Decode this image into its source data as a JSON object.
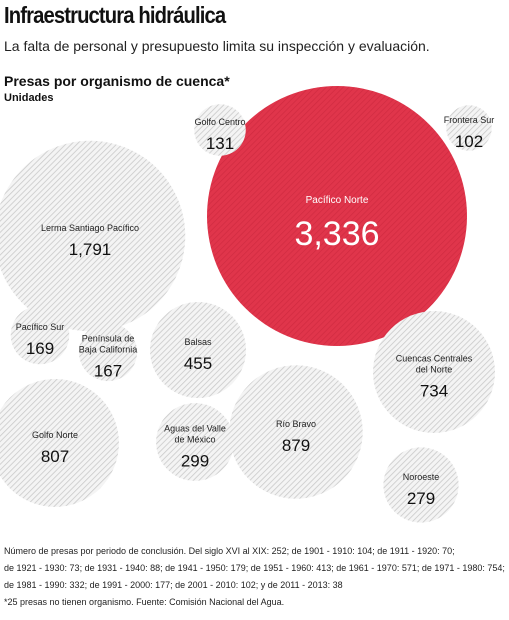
{
  "header": {
    "title": "Infraestructura hidráulica",
    "subtitle": "La falta de personal y presupuesto limita su inspección y evaluación."
  },
  "chart_data": {
    "type": "bubble",
    "title": "Presas por organismo de cuenca*",
    "units": "Unidades",
    "series": [
      {
        "name": "Pacífico Norte",
        "value": 3336,
        "display": "3,336",
        "highlight": true
      },
      {
        "name": "Lerma Santiago Pacífico",
        "value": 1791,
        "display": "1,791"
      },
      {
        "name": "Golfo Norte",
        "value": 807,
        "display": "807"
      },
      {
        "name": "Río Bravo",
        "value": 879,
        "display": "879"
      },
      {
        "name": "Cuencas Centrales del Norte",
        "value": 734,
        "display": "734"
      },
      {
        "name": "Balsas",
        "value": 455,
        "display": "455"
      },
      {
        "name": "Aguas del Valle de México",
        "value": 299,
        "display": "299"
      },
      {
        "name": "Noroeste",
        "value": 279,
        "display": "279"
      },
      {
        "name": "Pacífico Sur",
        "value": 169,
        "display": "169"
      },
      {
        "name": "Península de Baja California",
        "value": 167,
        "display": "167"
      },
      {
        "name": "Golfo Centro",
        "value": 131,
        "display": "131"
      },
      {
        "name": "Frontera Sur",
        "value": 102,
        "display": "102"
      }
    ]
  },
  "colors": {
    "highlight": "#e0354b",
    "hatch": "#cfcfcf",
    "text": "#111111"
  },
  "footnotes": [
    "Número de presas por periodo de conclusión. Del siglo XVI al XIX: 252; de 1901 - 1910: 104; de 1911 - 1920: 70;",
    "de 1921 - 1930: 73; de 1931 - 1940: 88; de 1941 - 1950: 179; de 1951 - 1960: 413; de 1961 - 1970: 571; de 1971 - 1980: 754;",
    "de 1981 - 1990: 332; de 1991 - 2000: 177; de 2001 - 2010: 102; y de 2011 - 2013: 38",
    "*25 presas no tienen organismo. Fuente: Comisión Nacional del Agua."
  ]
}
